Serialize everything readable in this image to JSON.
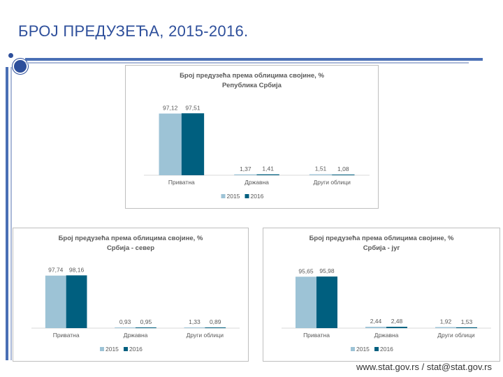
{
  "slide": {
    "title": "БРОЈ ПРЕДУЗЕЋА, 2015-2016.",
    "footer": "www.stat.gov.rs / stat@stat.gov.rs"
  },
  "colors": {
    "s2015": "#9dc3d6",
    "s2016": "#005f7f",
    "text": "#595959",
    "axis": "#d9d9d9"
  },
  "chart_data": [
    {
      "type": "bar",
      "title": "Број предузећа према облицима својине, %",
      "subtitle": "Република Србија",
      "categories": [
        "Приватна",
        "Државна",
        "Други облици"
      ],
      "series": [
        {
          "name": "2015",
          "values": [
            97.12,
            1.37,
            1.51
          ],
          "labels": [
            "97,12",
            "1,37",
            "1,51"
          ]
        },
        {
          "name": "2016",
          "values": [
            97.51,
            1.41,
            1.08
          ],
          "labels": [
            "97,51",
            "1,41",
            "1,08"
          ]
        }
      ],
      "ylim": [
        0,
        100
      ],
      "legend": "bottom"
    },
    {
      "type": "bar",
      "title": "Број предузећа према облицима својине, %",
      "subtitle": "Србија - север",
      "categories": [
        "Приватна",
        "Државна",
        "Други облици"
      ],
      "series": [
        {
          "name": "2015",
          "values": [
            97.74,
            0.93,
            1.33
          ],
          "labels": [
            "97,74",
            "0,93",
            "1,33"
          ]
        },
        {
          "name": "2016",
          "values": [
            98.16,
            0.95,
            0.89
          ],
          "labels": [
            "98,16",
            "0,95",
            "0,89"
          ]
        }
      ],
      "ylim": [
        0,
        100
      ],
      "legend": "bottom"
    },
    {
      "type": "bar",
      "title": "Број предузећа према облицима својине, %",
      "subtitle": "Србија - југ",
      "categories": [
        "Приватна",
        "Државна",
        "Други облици"
      ],
      "series": [
        {
          "name": "2015",
          "values": [
            95.65,
            2.44,
            1.92
          ],
          "labels": [
            "95,65",
            "2,44",
            "1,92"
          ]
        },
        {
          "name": "2016",
          "values": [
            95.98,
            2.48,
            1.53
          ],
          "labels": [
            "95,98",
            "2,48",
            "1,53"
          ]
        }
      ],
      "ylim": [
        0,
        100
      ],
      "legend": "bottom"
    }
  ]
}
